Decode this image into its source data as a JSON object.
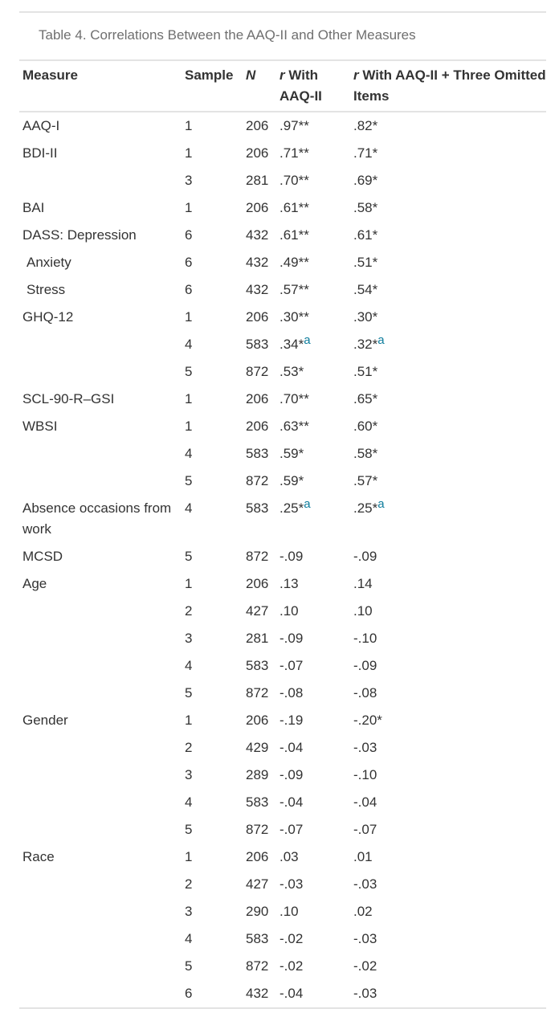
{
  "caption": "Table 4. Correlations Between the AAQ-II and Other Measures",
  "headers": {
    "measure": "Measure",
    "sample": "Sample",
    "n": "N",
    "r1_italic": "r",
    "r1_rest": " With AAQ-II",
    "r2_italic": "r",
    "r2_rest": " With AAQ-II + Three Omitted Items"
  },
  "rows": [
    {
      "measure": "AAQ-I",
      "sample": "1",
      "n": "206",
      "r1": ".97**",
      "r2": ".82*"
    },
    {
      "measure": "BDI-II",
      "sample": "1",
      "n": "206",
      "r1": ".71**",
      "r2": ".71*"
    },
    {
      "measure": "",
      "sample": "3",
      "n": "281",
      "r1": ".70**",
      "r2": ".69*"
    },
    {
      "measure": "BAI",
      "sample": "1",
      "n": "206",
      "r1": ".61**",
      "r2": ".58*"
    },
    {
      "measure": "DASS: Depression",
      "sample": "6",
      "n": "432",
      "r1": ".61**",
      "r2": ".61*"
    },
    {
      "measure": "Anxiety",
      "indent": true,
      "sample": "6",
      "n": "432",
      "r1": ".49**",
      "r2": ".51*"
    },
    {
      "measure": "Stress",
      "indent": true,
      "sample": "6",
      "n": "432",
      "r1": ".57**",
      "r2": ".54*"
    },
    {
      "measure": "GHQ-12",
      "sample": "1",
      "n": "206",
      "r1": ".30**",
      "r2": ".30*"
    },
    {
      "measure": "",
      "sample": "4",
      "n": "583",
      "r1": ".34*",
      "r1_sup": "a",
      "r2": ".32*",
      "r2_sup": "a"
    },
    {
      "measure": "",
      "sample": "5",
      "n": "872",
      "r1": ".53*",
      "r2": ".51*"
    },
    {
      "measure": "SCL-90-R–GSI",
      "sample": "1",
      "n": "206",
      "r1": ".70**",
      "r2": ".65*"
    },
    {
      "measure": "WBSI",
      "sample": "1",
      "n": "206",
      "r1": ".63**",
      "r2": ".60*"
    },
    {
      "measure": "",
      "sample": "4",
      "n": "583",
      "r1": ".59*",
      "r2": ".58*"
    },
    {
      "measure": "",
      "sample": "5",
      "n": "872",
      "r1": ".59*",
      "r2": ".57*"
    },
    {
      "measure": "Absence occasions from work",
      "sample": "4",
      "n": "583",
      "r1": ".25*",
      "r1_sup": "a",
      "r2": ".25*",
      "r2_sup": "a"
    },
    {
      "measure": "MCSD",
      "sample": "5",
      "n": "872",
      "r1": "-.09",
      "r2": "-.09"
    },
    {
      "measure": "Age",
      "sample": "1",
      "n": "206",
      "r1": ".13",
      "r2": ".14"
    },
    {
      "measure": "",
      "sample": "2",
      "n": "427",
      "r1": ".10",
      "r2": ".10"
    },
    {
      "measure": "",
      "sample": "3",
      "n": "281",
      "r1": "-.09",
      "r2": "-.10"
    },
    {
      "measure": "",
      "sample": "4",
      "n": "583",
      "r1": "-.07",
      "r2": "-.09"
    },
    {
      "measure": "",
      "sample": "5",
      "n": "872",
      "r1": "-.08",
      "r2": "-.08"
    },
    {
      "measure": "Gender",
      "sample": "1",
      "n": "206",
      "r1": "-.19",
      "r2": "-.20*"
    },
    {
      "measure": "",
      "sample": "2",
      "n": "429",
      "r1": "-.04",
      "r2": "-.03"
    },
    {
      "measure": "",
      "sample": "3",
      "n": "289",
      "r1": "-.09",
      "r2": "-.10"
    },
    {
      "measure": "",
      "sample": "4",
      "n": "583",
      "r1": "-.04",
      "r2": "-.04"
    },
    {
      "measure": "",
      "sample": "5",
      "n": "872",
      "r1": "-.07",
      "r2": "-.07"
    },
    {
      "measure": "Race",
      "sample": "1",
      "n": "206",
      "r1": ".03",
      "r2": ".01"
    },
    {
      "measure": "",
      "sample": "2",
      "n": "427",
      "r1": "-.03",
      "r2": "-.03"
    },
    {
      "measure": "",
      "sample": "3",
      "n": "290",
      "r1": ".10",
      "r2": ".02"
    },
    {
      "measure": "",
      "sample": "4",
      "n": "583",
      "r1": "-.02",
      "r2": "-.03"
    },
    {
      "measure": "",
      "sample": "5",
      "n": "872",
      "r1": "-.02",
      "r2": "-.02"
    },
    {
      "measure": "",
      "sample": "6",
      "n": "432",
      "r1": "-.04",
      "r2": "-.03"
    }
  ],
  "colors": {
    "text": "#333333",
    "caption": "#6f6f6f",
    "rule": "#e3e3e3",
    "footnote_link": "#0d7c9c"
  }
}
